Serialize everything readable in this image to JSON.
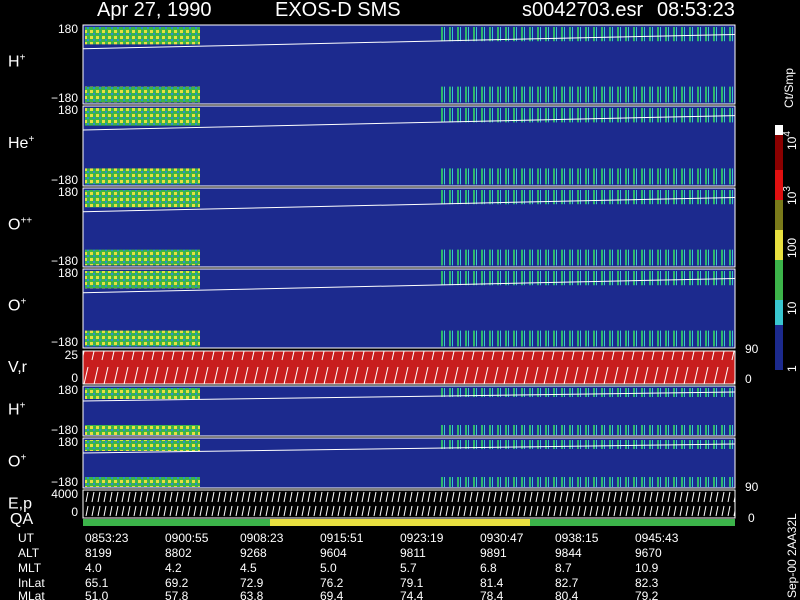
{
  "header": {
    "date": "Apr 27, 1990",
    "instrument": "EXOS-D SMS",
    "file": "s0042703.esr",
    "time": "08:53:23"
  },
  "panels": [
    {
      "label": "H",
      "sup": "+",
      "ticks": [
        "180",
        "−180"
      ]
    },
    {
      "label": "He",
      "sup": "+",
      "ticks": [
        "180",
        "−180"
      ]
    },
    {
      "label": "O",
      "sup": "++",
      "ticks": [
        "180",
        "−180"
      ]
    },
    {
      "label": "O",
      "sup": "+",
      "ticks": [
        "180",
        "−180"
      ]
    },
    {
      "label": "V,r",
      "ticks": [
        "25",
        "0"
      ]
    },
    {
      "label": "H",
      "sup": "+",
      "ticks": [
        "180",
        "−180"
      ]
    },
    {
      "label": "O",
      "sup": "+",
      "ticks": [
        "180",
        "−180"
      ]
    },
    {
      "label": "E,p",
      "ticks": [
        "4000",
        "0"
      ]
    }
  ],
  "qa_label": "QA",
  "right_scale": [
    "90",
    "0",
    "90",
    "0"
  ],
  "colorbar": {
    "title": "Ct/Smp",
    "labels": [
      {
        "base": "10",
        "sup": "4"
      },
      {
        "base": "10",
        "sup": "3"
      },
      {
        "base": "100"
      },
      {
        "base": "10"
      },
      {
        "base": "1"
      }
    ]
  },
  "table": {
    "rows": [
      {
        "label": "UT",
        "cells": [
          "0853:23",
          "0900:55",
          "0908:23",
          "0915:51",
          "0923:19",
          "0930:47",
          "0938:15",
          "0945:43"
        ]
      },
      {
        "label": "ALT",
        "cells": [
          "8199",
          "8802",
          "9268",
          "9604",
          "9811",
          "9891",
          "9844",
          "9670"
        ]
      },
      {
        "label": "MLT",
        "cells": [
          "4.0",
          "4.2",
          "4.5",
          "5.0",
          "5.7",
          "6.8",
          "8.7",
          "10.9"
        ]
      },
      {
        "label": "InLat",
        "cells": [
          "65.1",
          "69.2",
          "72.9",
          "76.2",
          "79.1",
          "81.4",
          "82.7",
          "82.3"
        ]
      },
      {
        "label": "MLat",
        "cells": [
          "51.0",
          "57.8",
          "63.8",
          "69.4",
          "74.4",
          "78.4",
          "80.4",
          "79.2"
        ]
      }
    ]
  },
  "footer": "Sep-00 2AA32L"
}
